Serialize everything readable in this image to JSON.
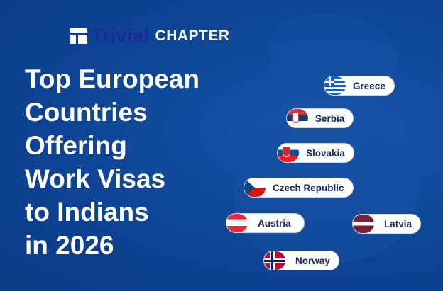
{
  "logo": {
    "brand_part1": "Trivial",
    "brand_part2": "CHAPTER"
  },
  "title_lines": [
    "Top European",
    "Countries",
    "Offering",
    "Work Visas",
    "to Indians",
    "in 2026"
  ],
  "countries": [
    {
      "name": "Greece",
      "flag": "greece-flag"
    },
    {
      "name": "Serbia",
      "flag": "serbia-flag"
    },
    {
      "name": "Slovakia",
      "flag": "slovakia-flag"
    },
    {
      "name": "Czech Republic",
      "flag": "czech-flag"
    },
    {
      "name": "Austria",
      "flag": "austria-flag"
    },
    {
      "name": "Latvia",
      "flag": "latvia-flag"
    },
    {
      "name": "Norway",
      "flag": "norway-flag"
    }
  ],
  "colors": {
    "background": "#0c4393",
    "pill_text": "#13296b",
    "brand_dark": "#1a2a9a"
  }
}
